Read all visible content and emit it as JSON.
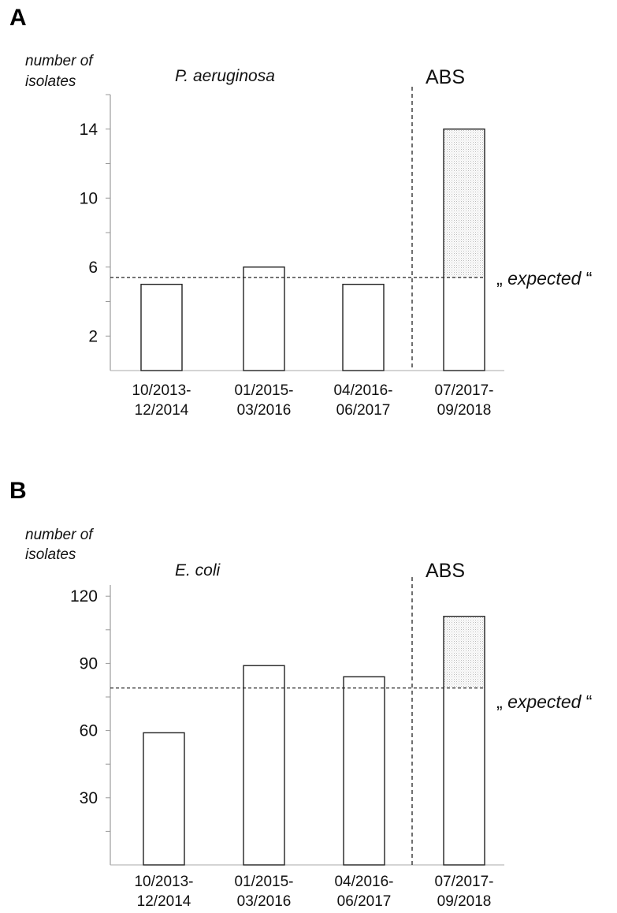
{
  "chart_data": [
    {
      "type": "bar",
      "panel_label": "A",
      "title": "P. aeruginosa",
      "ylabel_line1": "number of",
      "ylabel_line2": "isolates",
      "ylim": [
        0,
        16
      ],
      "yticks": [
        2,
        6,
        10,
        14
      ],
      "categories": [
        {
          "line1": "10/2013-",
          "line2": "12/2014"
        },
        {
          "line1": "01/2015-",
          "line2": "03/2016"
        },
        {
          "line1": "04/2016-",
          "line2": "06/2017"
        },
        {
          "line1": "07/2017-",
          "line2": "09/2018"
        }
      ],
      "values": [
        5,
        6,
        5,
        14
      ],
      "expected_value": 5.4,
      "excess_shaded_bar_index": 3,
      "divider_label": "ABS",
      "expected_label_open": "„ ",
      "expected_label_word": "expected",
      "expected_label_close": " “"
    },
    {
      "type": "bar",
      "panel_label": "B",
      "title": "E. coli",
      "ylabel_line1": "number of",
      "ylabel_line2": "isolates",
      "ylim": [
        0,
        125
      ],
      "yticks": [
        30,
        60,
        90,
        120
      ],
      "categories": [
        {
          "line1": "10/2013-",
          "line2": "12/2014"
        },
        {
          "line1": "01/2015-",
          "line2": "03/2016"
        },
        {
          "line1": "04/2016-",
          "line2": "06/2017"
        },
        {
          "line1": "07/2017-",
          "line2": "09/2018"
        }
      ],
      "values": [
        59,
        89,
        84,
        111
      ],
      "expected_value": 79,
      "excess_shaded_bar_index": 3,
      "divider_label": "ABS",
      "expected_label_open": "„ ",
      "expected_label_word": "expected",
      "expected_label_close": " “"
    }
  ]
}
